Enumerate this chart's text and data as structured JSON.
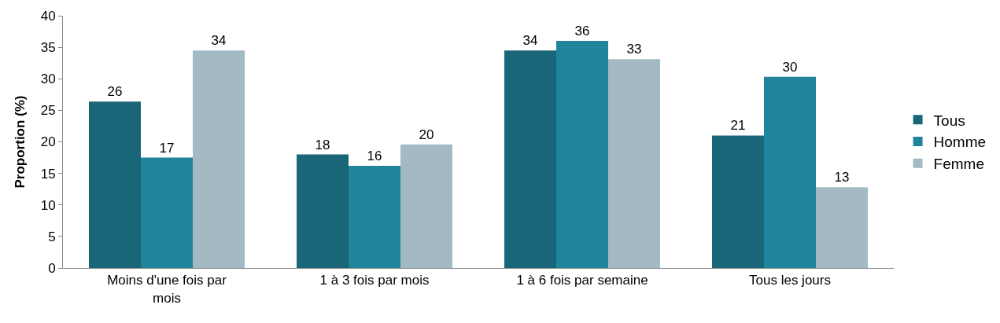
{
  "chart_data": {
    "type": "bar",
    "ylabel": "Proportion (%)",
    "categories": [
      "Moins d'une fois par mois",
      "1 à 3 fois par mois",
      "1 à 6 fois par semaine",
      "Tous les jours"
    ],
    "series": [
      {
        "name": "Tous",
        "color": "#1a6679",
        "values": [
          26.4,
          18.0,
          34.5,
          21.0
        ],
        "value_labels": [
          "26",
          "18",
          "34",
          "21"
        ]
      },
      {
        "name": "Homme",
        "color": "#1f849c",
        "values": [
          17.5,
          16.2,
          36.0,
          30.3
        ],
        "value_labels": [
          "17",
          "16",
          "36",
          "30"
        ]
      },
      {
        "name": "Femme",
        "color": "#a3bac5",
        "values": [
          34.5,
          19.6,
          33.1,
          12.8
        ],
        "value_labels": [
          "34",
          "20",
          "33",
          "13"
        ]
      }
    ],
    "ylim": [
      0,
      40
    ],
    "yticks": [
      0,
      5,
      10,
      15,
      20,
      25,
      30,
      35,
      40
    ],
    "legend": "right"
  }
}
